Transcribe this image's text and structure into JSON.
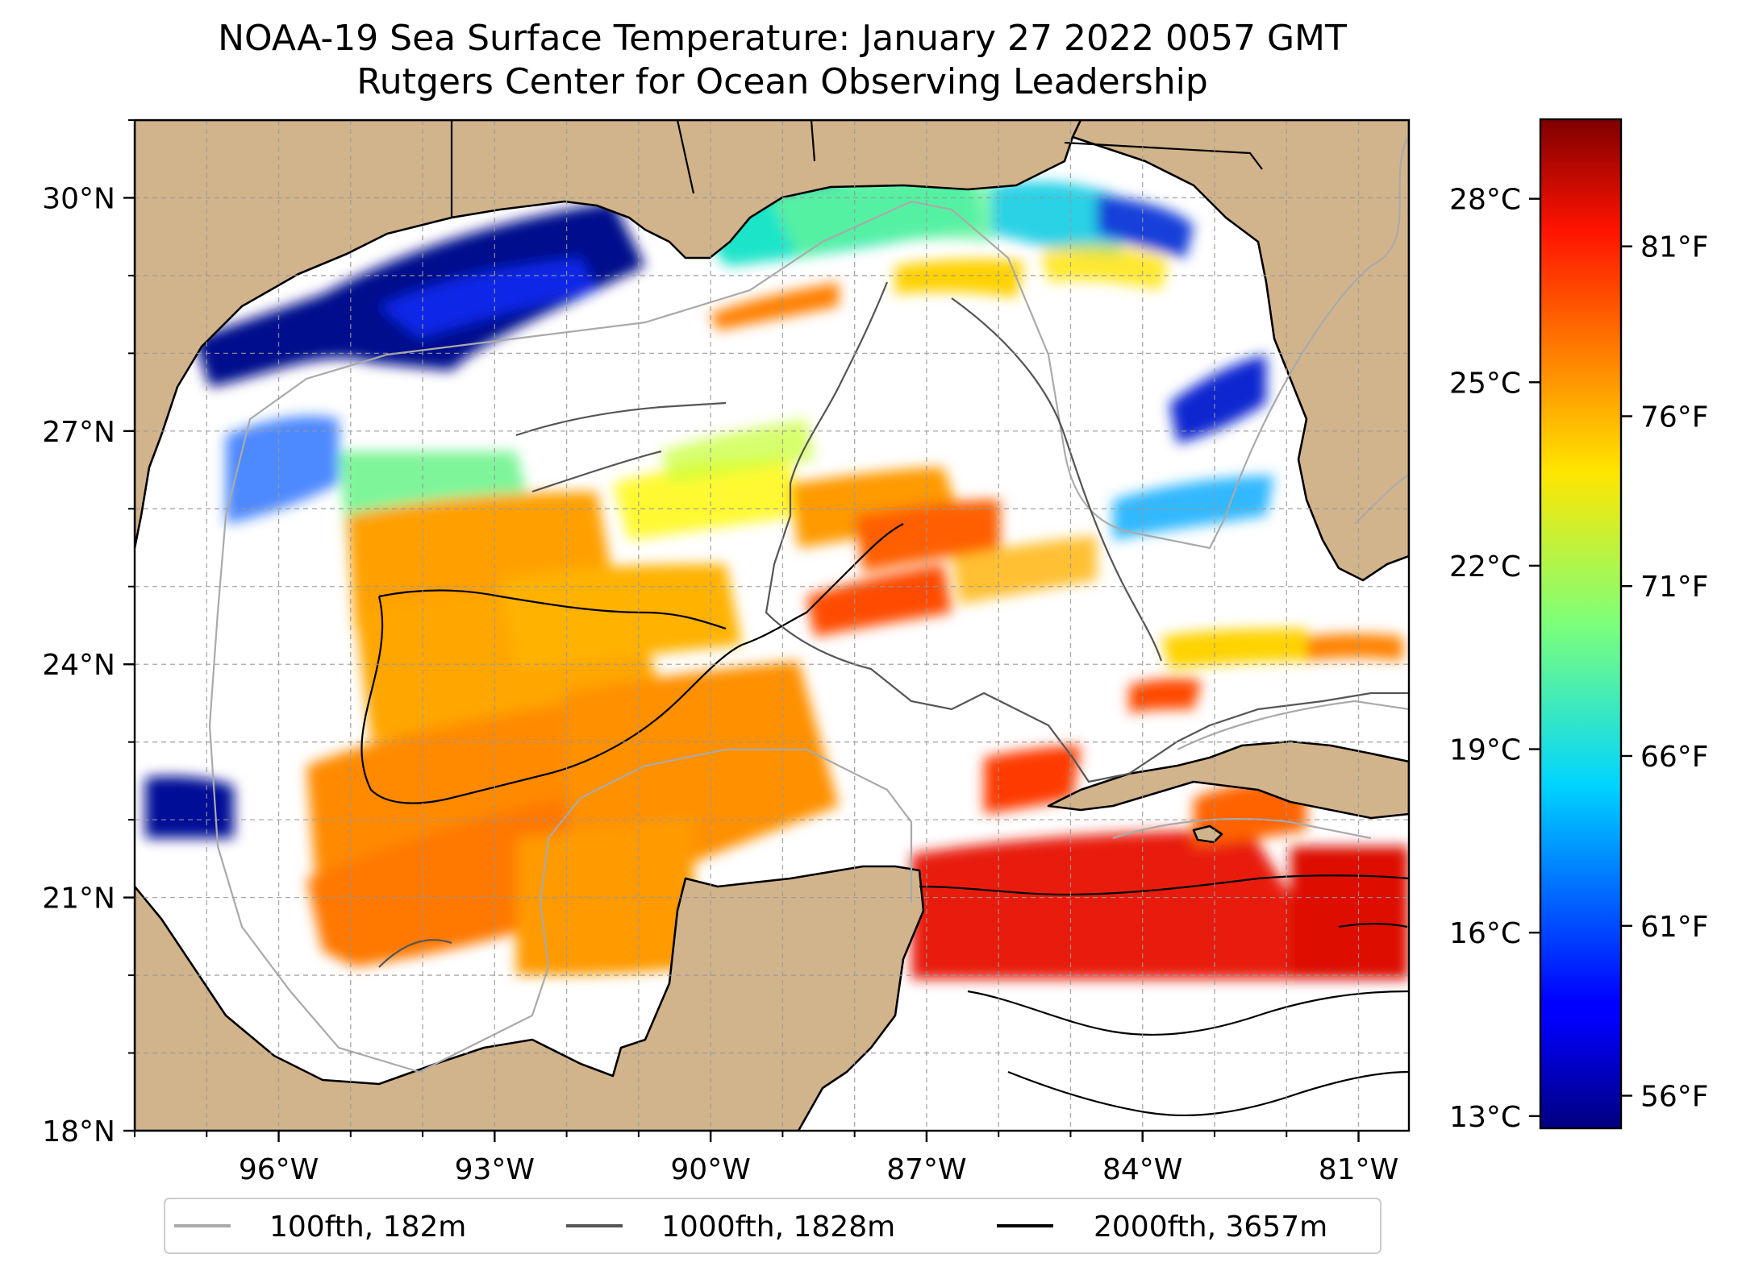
{
  "title": "NOAA-19 Sea Surface Temperature: January 27 2022 0057 GMT",
  "subtitle": "Rutgers Center for Ocean Observing Leadership",
  "map": {
    "lon_range": [
      -98.0,
      -80.3
    ],
    "lat_range": [
      18.0,
      31.0
    ],
    "lon_ticks": [
      {
        "value": -96,
        "label": "96°W"
      },
      {
        "value": -93,
        "label": "93°W"
      },
      {
        "value": -90,
        "label": "90°W"
      },
      {
        "value": -87,
        "label": "87°W"
      },
      {
        "value": -84,
        "label": "84°W"
      },
      {
        "value": -81,
        "label": "81°W"
      }
    ],
    "lat_ticks": [
      {
        "value": 18,
        "label": "18°N"
      },
      {
        "value": 21,
        "label": "21°N"
      },
      {
        "value": 24,
        "label": "24°N"
      },
      {
        "value": 27,
        "label": "27°N"
      },
      {
        "value": 30,
        "label": "30°N"
      }
    ],
    "land_color": "#d2b48c",
    "grid": "dashed"
  },
  "colorbar": {
    "range_c": [
      12.8,
      29.3
    ],
    "colormap": "jet",
    "celsius_ticks": [
      {
        "value": 13,
        "label": "13°C"
      },
      {
        "value": 16,
        "label": "16°C"
      },
      {
        "value": 19,
        "label": "19°C"
      },
      {
        "value": 22,
        "label": "22°C"
      },
      {
        "value": 25,
        "label": "25°C"
      },
      {
        "value": 28,
        "label": "28°C"
      }
    ],
    "fahrenheit_ticks": [
      {
        "value": 56,
        "label": "56°F"
      },
      {
        "value": 61,
        "label": "61°F"
      },
      {
        "value": 66,
        "label": "66°F"
      },
      {
        "value": 71,
        "label": "71°F"
      },
      {
        "value": 76,
        "label": "76°F"
      },
      {
        "value": 81,
        "label": "81°F"
      }
    ]
  },
  "legend": {
    "position": "bottom",
    "items": [
      {
        "label": "100fth, 182m",
        "color": "#aaaaaa"
      },
      {
        "label": "1000fth, 1828m",
        "color": "#555555"
      },
      {
        "label": "2000fth, 3657m",
        "color": "#000000"
      }
    ]
  }
}
